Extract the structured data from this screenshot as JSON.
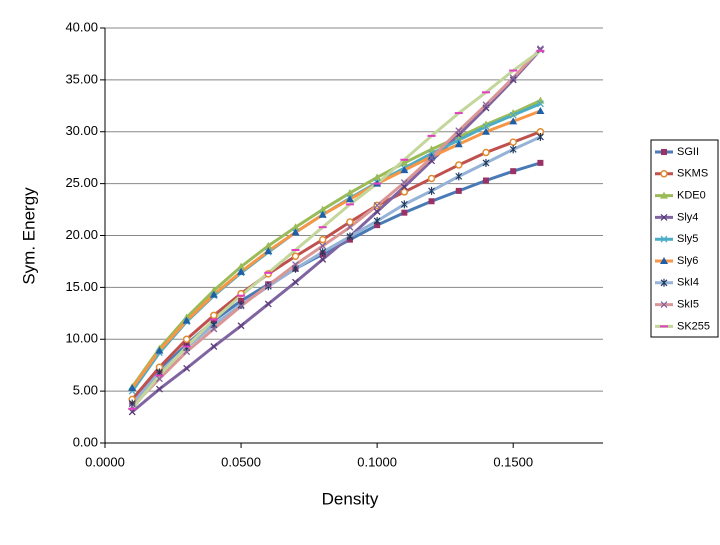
{
  "chart_data": {
    "type": "line",
    "y_label": "Sym. Energy",
    "x_label": "Density",
    "x": [
      0.01,
      0.02,
      0.03,
      0.04,
      0.05,
      0.06,
      0.07,
      0.08,
      0.09,
      0.1,
      0.11,
      0.12,
      0.13,
      0.14,
      0.15,
      0.16
    ],
    "xlim": [
      0,
      0.183
    ],
    "xticks": [
      {
        "value": 0,
        "label": "0.0000"
      },
      {
        "value": 0.05,
        "label": "0.0500"
      },
      {
        "value": 0.1,
        "label": "0.1000"
      },
      {
        "value": 0.15,
        "label": "0.1500"
      }
    ],
    "ylim": [
      0,
      40
    ],
    "yticks": [
      {
        "value": 0,
        "label": "0.00"
      },
      {
        "value": 5,
        "label": "5.00"
      },
      {
        "value": 10,
        "label": "10.00"
      },
      {
        "value": 15,
        "label": "15.00"
      },
      {
        "value": 20,
        "label": "20.00"
      },
      {
        "value": 25,
        "label": "25.00"
      },
      {
        "value": 30,
        "label": "30.00"
      },
      {
        "value": 35,
        "label": "35.00"
      },
      {
        "value": 40,
        "label": "40.00"
      }
    ],
    "grid": true,
    "legend": "right",
    "series": [
      {
        "name": "SGII",
        "color": "#4a7ab5",
        "marker_color": "#993366",
        "marker": "square",
        "values": [
          4.0,
          7.0,
          9.5,
          11.8,
          13.7,
          15.3,
          16.8,
          18.2,
          19.6,
          21.0,
          22.2,
          23.3,
          24.3,
          25.3,
          26.2,
          27.0
        ]
      },
      {
        "name": "SKMS",
        "color": "#c0504d",
        "marker_color": "#e08a30",
        "marker": "circle",
        "values": [
          4.2,
          7.3,
          10.0,
          12.3,
          14.4,
          16.3,
          18.0,
          19.6,
          21.3,
          22.9,
          24.2,
          25.5,
          26.8,
          28.0,
          29.0,
          30.0
        ]
      },
      {
        "name": "KDE0",
        "color": "#9bbb59",
        "marker_color": "#9bbb59",
        "marker": "triangle",
        "values": [
          5.4,
          9.1,
          12.1,
          14.7,
          17.0,
          19.0,
          20.8,
          22.5,
          24.1,
          25.6,
          27.0,
          28.3,
          29.5,
          30.7,
          31.8,
          33.0
        ]
      },
      {
        "name": "Sly4",
        "color": "#8064a2",
        "marker_color": "#5a3d7a",
        "marker": "x",
        "values": [
          3.0,
          5.2,
          7.2,
          9.3,
          11.3,
          13.4,
          15.5,
          17.7,
          19.9,
          22.3,
          24.7,
          27.2,
          29.7,
          32.3,
          35.0,
          37.9
        ]
      },
      {
        "name": "Sly5",
        "color": "#4bacc6",
        "marker_color": "#4bacc6",
        "marker": "x",
        "values": [
          5.0,
          8.7,
          11.7,
          14.2,
          16.4,
          18.4,
          20.3,
          22.0,
          23.6,
          25.1,
          26.5,
          27.9,
          29.2,
          30.5,
          31.6,
          32.7
        ]
      },
      {
        "name": "Sly6",
        "color": "#f79646",
        "marker_color": "#1f5fa8",
        "marker": "triangle",
        "values": [
          5.3,
          8.9,
          11.8,
          14.3,
          16.5,
          18.5,
          20.3,
          22.0,
          23.5,
          25.0,
          26.3,
          27.6,
          28.8,
          30.0,
          31.0,
          32.0
        ]
      },
      {
        "name": "SkI4",
        "color": "#95b3d7",
        "marker_color": "#1f3a5f",
        "marker": "star",
        "values": [
          3.8,
          6.8,
          9.2,
          11.4,
          13.3,
          15.1,
          16.8,
          18.4,
          19.9,
          21.4,
          23.0,
          24.3,
          25.7,
          27.0,
          28.3,
          29.5
        ]
      },
      {
        "name": "SkI5",
        "color": "#d99694",
        "marker_color": "#8064a2",
        "marker": "x",
        "values": [
          3.5,
          6.2,
          8.8,
          11.0,
          13.2,
          15.2,
          17.2,
          19.0,
          20.8,
          22.9,
          25.1,
          27.5,
          30.1,
          32.6,
          35.2,
          38.0
        ]
      },
      {
        "name": "SK255",
        "color": "#c3d69b",
        "marker_color": "#e040c0",
        "marker": "dash",
        "values": [
          3.3,
          6.5,
          9.3,
          11.9,
          14.2,
          16.4,
          18.6,
          20.8,
          23.0,
          25.0,
          27.3,
          29.6,
          31.8,
          33.8,
          35.9,
          37.8
        ]
      }
    ]
  }
}
